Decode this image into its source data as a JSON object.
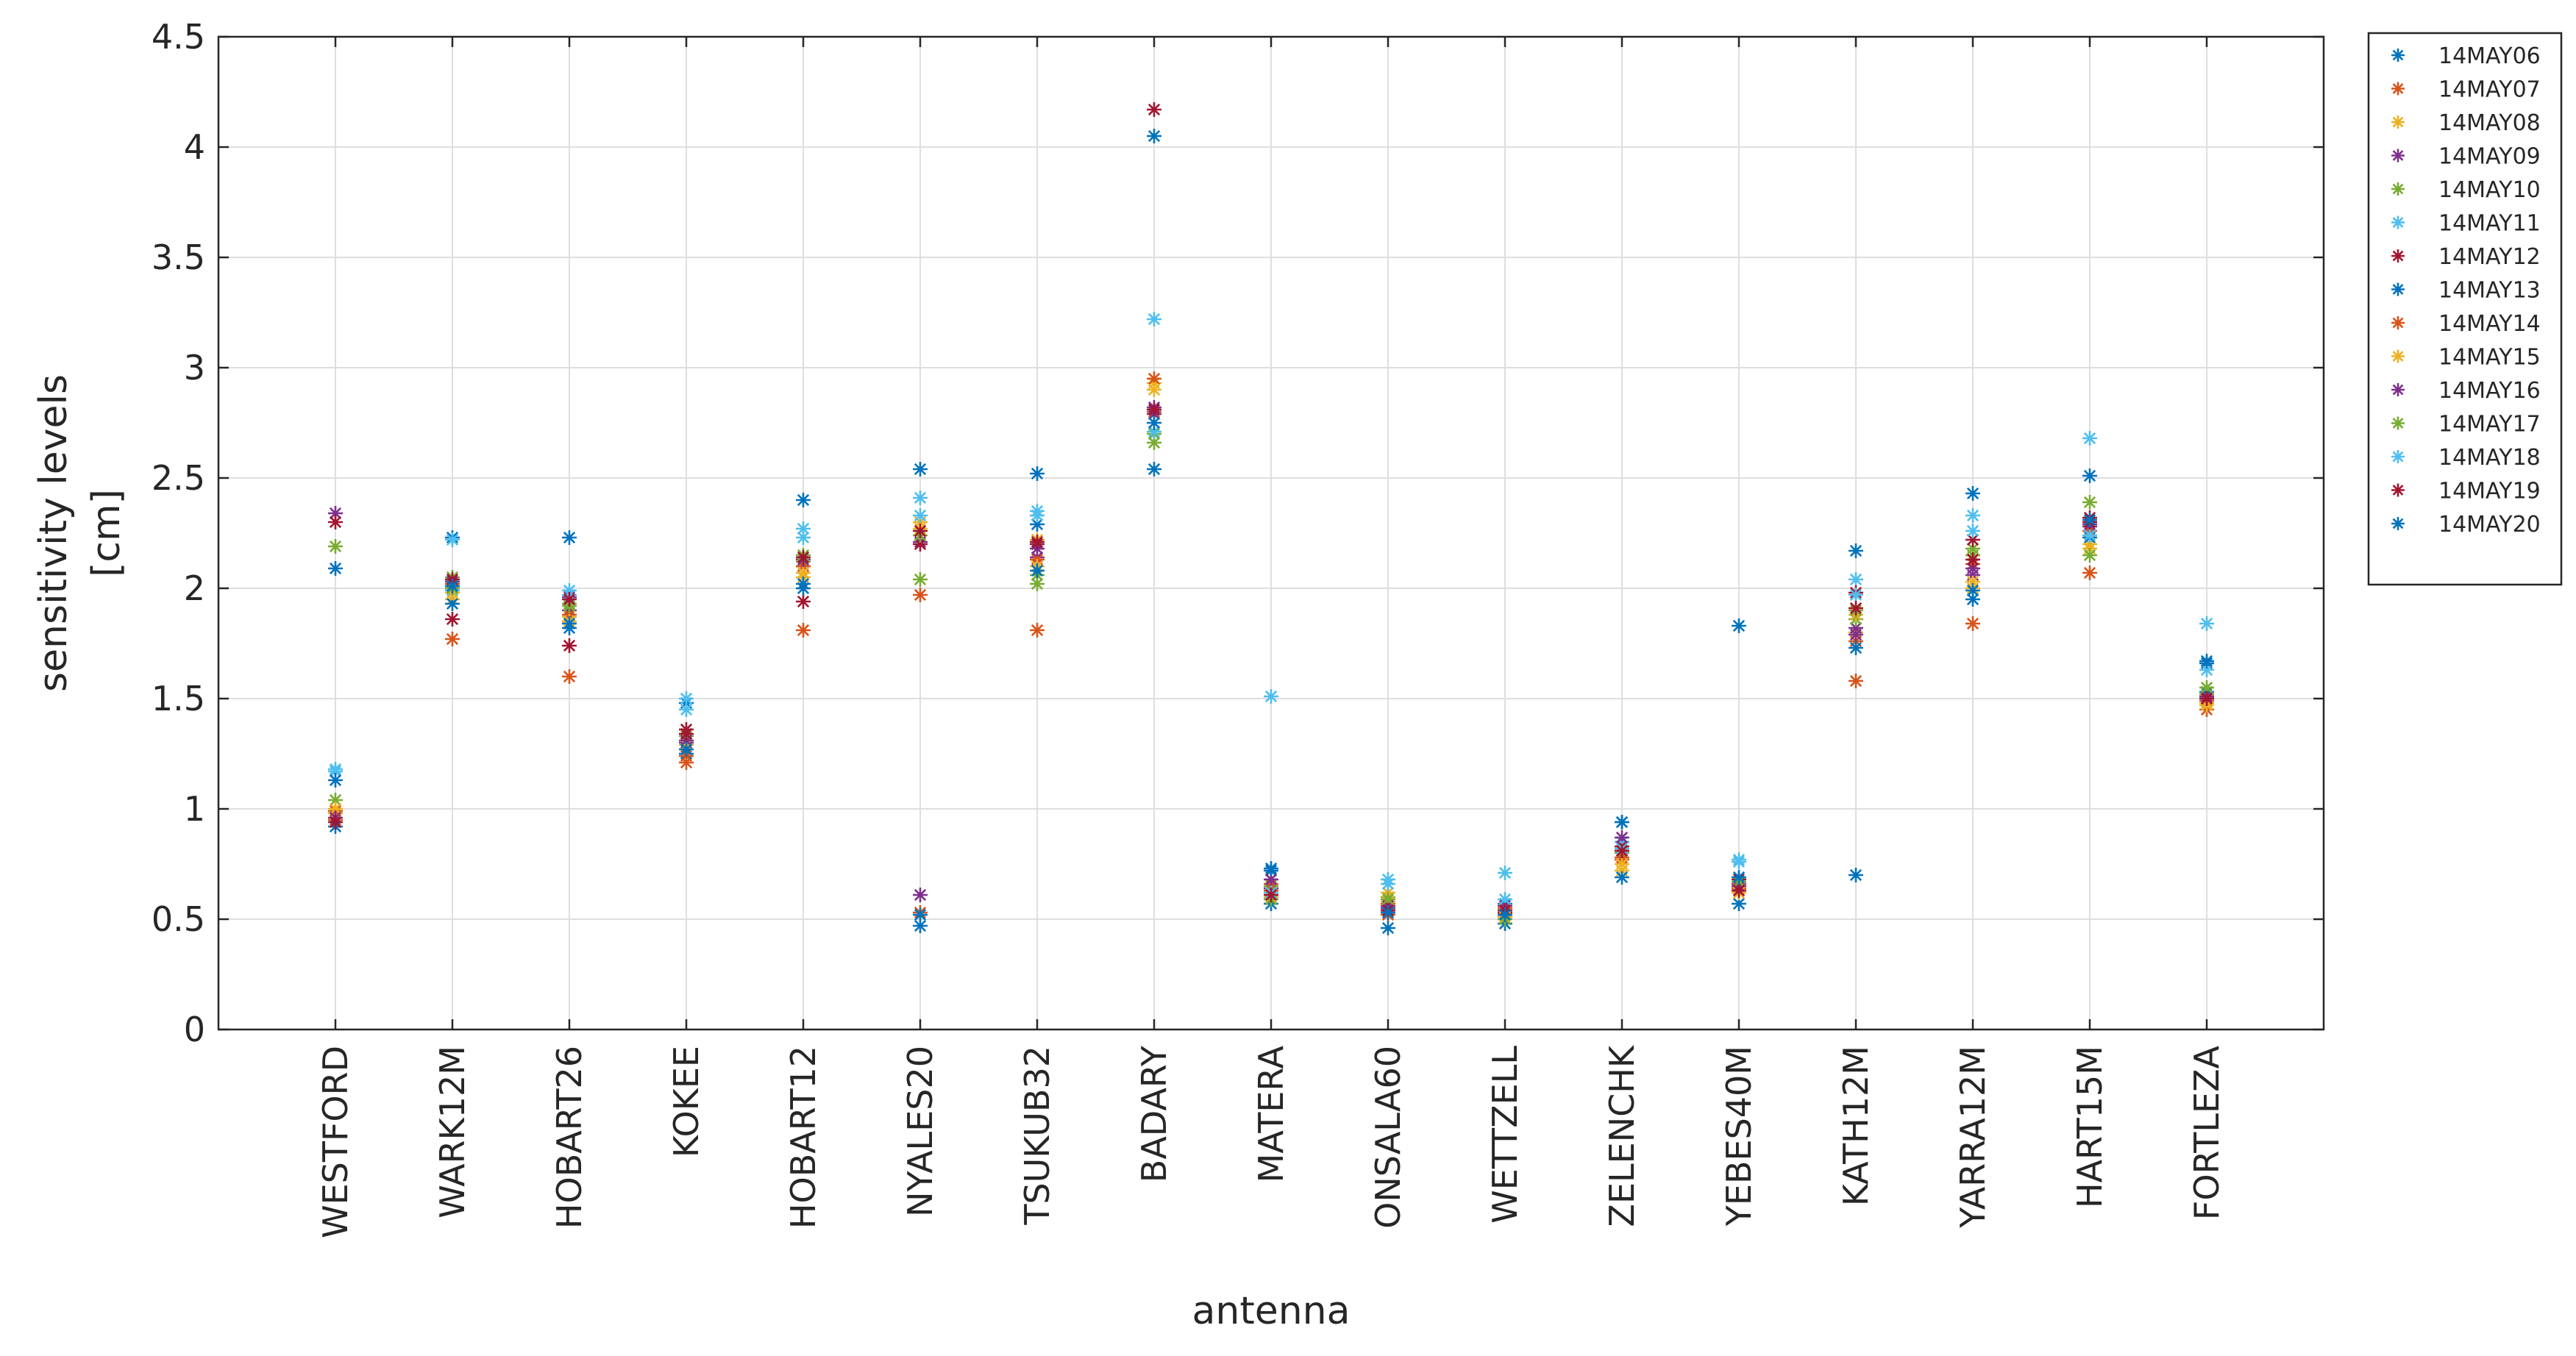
{
  "chart_data": {
    "type": "scatter",
    "marker": "asterisk",
    "xlabel": "antenna",
    "ylabel_lines": [
      "sensitivity levels",
      "[cm]"
    ],
    "ylim": [
      0,
      4.5
    ],
    "yticks": [
      0,
      0.5,
      1,
      1.5,
      2,
      2.5,
      3,
      3.5,
      4,
      4.5
    ],
    "ytick_labels": [
      "0",
      "0.5",
      "1",
      "1.5",
      "2",
      "2.5",
      "3",
      "3.5",
      "4",
      "4.5"
    ],
    "grid": true,
    "legend_position": "outside-top-right",
    "categories": [
      "WESTFORD",
      "WARK12M",
      "HOBART26",
      "KOKEE",
      "HOBART12",
      "NYALES20",
      "TSUKUB32",
      "BADARY",
      "MATERA",
      "ONSALA60",
      "WETTZELL",
      "ZELENCHK",
      "YEBES40M",
      "KATH12M",
      "YARRA12M",
      "HART15M",
      "FORTLEZA"
    ],
    "series": [
      {
        "name": "14MAY06",
        "color": "#0072BD",
        "values": [
          2.09,
          2.23,
          2.23,
          1.48,
          2.4,
          2.54,
          2.52,
          4.05,
          0.72,
          0.55,
          0.57,
          0.94,
          1.83,
          2.17,
          2.43,
          2.51,
          1.66
        ]
      },
      {
        "name": "14MAY07",
        "color": "#D95319",
        "values": [
          0.95,
          1.77,
          1.6,
          1.21,
          1.81,
          1.97,
          1.81,
          2.8,
          0.63,
          0.52,
          0.52,
          0.77,
          0.63,
          1.58,
          1.84,
          2.07,
          1.45
        ]
      },
      {
        "name": "14MAY08",
        "color": "#EDB120",
        "values": [
          0.98,
          1.95,
          1.87,
          1.27,
          2.05,
          2.3,
          2.22,
          2.93,
          0.62,
          0.58,
          0.5,
          0.72,
          0.62,
          1.8,
          2.0,
          2.2,
          1.48
        ]
      },
      {
        "name": "14MAY09",
        "color": "#7E2F8E",
        "values": [
          2.34,
          2.0,
          1.9,
          1.3,
          2.1,
          2.21,
          2.14,
          2.79,
          0.64,
          0.55,
          0.52,
          0.85,
          0.66,
          1.82,
          2.06,
          2.28,
          1.51
        ]
      },
      {
        "name": "14MAY10",
        "color": "#77AC30",
        "values": [
          1.04,
          2.05,
          1.93,
          1.33,
          2.12,
          2.04,
          2.06,
          2.66,
          0.65,
          0.6,
          0.53,
          0.8,
          0.65,
          1.86,
          2.18,
          2.39,
          1.52
        ]
      },
      {
        "name": "14MAY11",
        "color": "#4DBEEE",
        "values": [
          1.17,
          1.99,
          1.99,
          1.5,
          2.27,
          2.41,
          2.35,
          3.22,
          1.51,
          0.68,
          0.71,
          0.85,
          0.76,
          2.04,
          2.33,
          2.68,
          1.84
        ]
      },
      {
        "name": "14MAY12",
        "color": "#A2142F",
        "values": [
          2.3,
          1.86,
          1.74,
          1.36,
          1.94,
          2.2,
          2.2,
          4.17,
          0.6,
          0.53,
          0.53,
          0.83,
          0.68,
          1.98,
          2.22,
          2.32,
          1.5
        ]
      },
      {
        "name": "14MAY13",
        "color": "#0072BD",
        "values": [
          0.92,
          1.93,
          1.82,
          1.25,
          2.0,
          0.47,
          2.29,
          2.54,
          0.57,
          0.46,
          0.48,
          0.69,
          0.57,
          0.7,
          1.95,
          2.23,
          1.53
        ]
      },
      {
        "name": "14MAY14",
        "color": "#D95319",
        "values": [
          0.99,
          2.02,
          1.88,
          1.24,
          2.1,
          0.53,
          2.13,
          2.95,
          0.66,
          0.57,
          0.55,
          0.78,
          0.64,
          1.76,
          2.11,
          2.26,
          1.49
        ]
      },
      {
        "name": "14MAY15",
        "color": "#EDB120",
        "values": [
          1.0,
          1.98,
          1.85,
          1.29,
          2.07,
          2.27,
          2.1,
          2.9,
          0.6,
          0.62,
          0.51,
          0.75,
          0.62,
          1.88,
          2.03,
          2.18,
          1.47
        ]
      },
      {
        "name": "14MAY16",
        "color": "#7E2F8E",
        "values": [
          0.96,
          2.03,
          1.96,
          1.31,
          2.13,
          0.61,
          2.18,
          2.82,
          0.68,
          0.56,
          0.56,
          0.87,
          0.65,
          1.79,
          2.09,
          2.29,
          1.51
        ]
      },
      {
        "name": "14MAY17",
        "color": "#77AC30",
        "values": [
          2.19,
          2.0,
          1.92,
          1.34,
          2.15,
          2.24,
          2.02,
          2.7,
          0.59,
          0.59,
          0.5,
          0.81,
          0.67,
          1.9,
          2.15,
          2.15,
          1.55
        ]
      },
      {
        "name": "14MAY18",
        "color": "#4DBEEE",
        "values": [
          1.18,
          2.22,
          1.97,
          1.45,
          2.23,
          2.33,
          2.33,
          2.71,
          0.62,
          0.66,
          0.59,
          0.82,
          0.77,
          1.97,
          2.26,
          2.24,
          1.63
        ]
      },
      {
        "name": "14MAY19",
        "color": "#A2142F",
        "values": [
          0.94,
          2.04,
          1.95,
          1.34,
          2.14,
          2.26,
          2.21,
          2.81,
          0.61,
          0.54,
          0.54,
          0.81,
          0.63,
          1.91,
          2.13,
          2.3,
          1.5
        ]
      },
      {
        "name": "14MAY20",
        "color": "#0072BD",
        "values": [
          1.13,
          2.01,
          1.84,
          1.27,
          2.02,
          0.52,
          2.08,
          2.75,
          0.73,
          0.53,
          0.52,
          0.94,
          0.69,
          1.73,
          1.99,
          2.31,
          1.67
        ]
      }
    ]
  }
}
